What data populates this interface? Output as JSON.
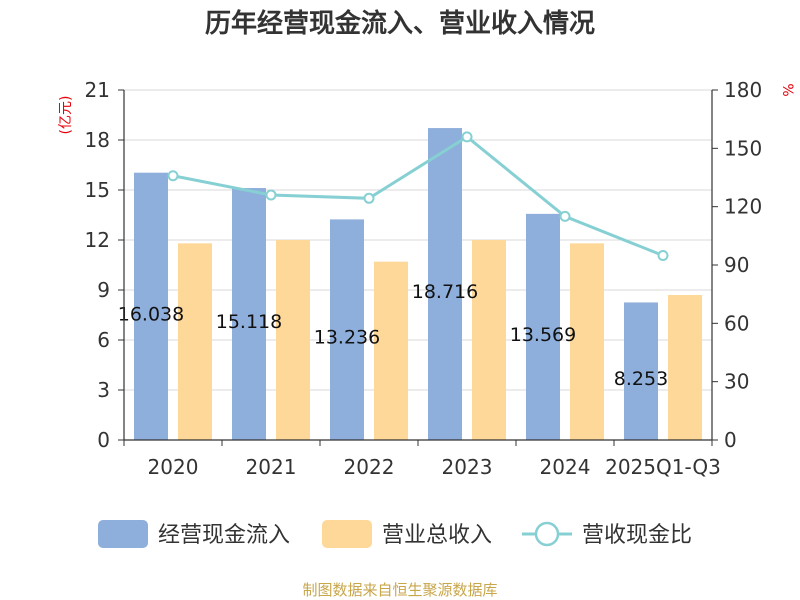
{
  "chart_data": {
    "type": "bar",
    "title": "历年经营现金流入、营业收入情况",
    "categories": [
      "2020",
      "2021",
      "2022",
      "2023",
      "2024",
      "2025Q1-Q3"
    ],
    "series": [
      {
        "name": "经营现金流入",
        "type": "bar",
        "axis": "left",
        "color": "#8eaedb",
        "values": [
          16.038,
          15.118,
          13.236,
          18.716,
          13.569,
          8.253
        ],
        "labels": [
          "16.038",
          "15.118",
          "13.236",
          "18.716",
          "13.569",
          "8.253"
        ]
      },
      {
        "name": "营业总收入",
        "type": "bar",
        "axis": "left",
        "color": "#fed899",
        "values": [
          11.8,
          12.0,
          10.7,
          12.0,
          11.8,
          8.7
        ]
      },
      {
        "name": "营收现金比",
        "type": "line",
        "axis": "right",
        "color": "#86d0d4",
        "values": [
          135.9,
          126.0,
          124.3,
          155.9,
          115.0,
          94.9
        ]
      }
    ],
    "y_left": {
      "unit": "(亿元)",
      "ylim": [
        0,
        21
      ],
      "ticks": [
        "0",
        "3",
        "6",
        "9",
        "12",
        "15",
        "18",
        "21"
      ]
    },
    "y_right": {
      "unit": "%",
      "ylim": [
        0,
        180
      ],
      "ticks": [
        "0",
        "30",
        "60",
        "90",
        "120",
        "150",
        "180"
      ]
    },
    "grid": true,
    "legend_position": "bottom"
  },
  "source": "制图数据来自恒生聚源数据库"
}
